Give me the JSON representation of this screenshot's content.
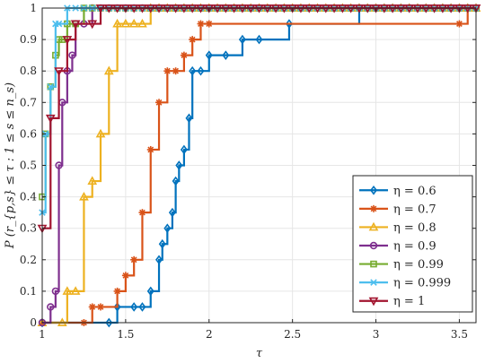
{
  "chart_data": {
    "type": "line",
    "step": true,
    "xlabel": "τ",
    "ylabel": "P (r_{p,s} ≤ τ : 1 ≤ s ≤ n_s)",
    "xlim": [
      1,
      3.6
    ],
    "ylim": [
      0,
      1
    ],
    "xticks": [
      1,
      1.5,
      2,
      2.5,
      3,
      3.5
    ],
    "xtick_labels": [
      "1",
      "1.5",
      "2",
      "2.5",
      "3",
      "3.5"
    ],
    "yticks": [
      0,
      0.1,
      0.2,
      0.3,
      0.4,
      0.5,
      0.6,
      0.7,
      0.8,
      0.9,
      1
    ],
    "ytick_labels": [
      "0",
      "0.1",
      "0.2",
      "0.3",
      "0.4",
      "0.5",
      "0.6",
      "0.7",
      "0.8",
      "0.9",
      "1"
    ],
    "grid": true,
    "legend_position": "bottom-right",
    "series": [
      {
        "name": "η = 0.6",
        "color": "#0072BD",
        "marker": "diamond",
        "x": [
          1,
          1.4,
          1.45,
          1.55,
          1.6,
          1.65,
          1.7,
          1.72,
          1.75,
          1.78,
          1.8,
          1.82,
          1.85,
          1.88,
          1.9,
          1.95,
          2.0,
          2.1,
          2.2,
          2.3,
          2.48,
          2.9
        ],
        "y": [
          0,
          0,
          0.05,
          0.05,
          0.05,
          0.1,
          0.2,
          0.25,
          0.3,
          0.35,
          0.45,
          0.5,
          0.55,
          0.65,
          0.8,
          0.8,
          0.85,
          0.85,
          0.9,
          0.9,
          0.95,
          1
        ]
      },
      {
        "name": "η = 0.7",
        "color": "#D95319",
        "marker": "asterisk",
        "x": [
          1,
          1.25,
          1.3,
          1.35,
          1.45,
          1.5,
          1.55,
          1.6,
          1.65,
          1.7,
          1.75,
          1.8,
          1.85,
          1.9,
          1.95,
          2.0,
          3.5,
          3.55
        ],
        "y": [
          0,
          0,
          0.05,
          0.05,
          0.1,
          0.15,
          0.2,
          0.35,
          0.55,
          0.7,
          0.8,
          0.8,
          0.85,
          0.9,
          0.95,
          0.95,
          0.95,
          1
        ]
      },
      {
        "name": "η = 0.8",
        "color": "#EDB120",
        "marker": "triangle-up",
        "x": [
          1,
          1.12,
          1.15,
          1.2,
          1.25,
          1.3,
          1.35,
          1.4,
          1.45,
          1.5,
          1.55,
          1.6,
          1.65
        ],
        "y": [
          0,
          0,
          0.1,
          0.1,
          0.4,
          0.45,
          0.6,
          0.8,
          0.95,
          0.95,
          0.95,
          0.95,
          1
        ]
      },
      {
        "name": "η = 0.9",
        "color": "#7E2F8E",
        "marker": "circle",
        "x": [
          1,
          1.05,
          1.08,
          1.1,
          1.12,
          1.15,
          1.18,
          1.2,
          1.25,
          1.3
        ],
        "y": [
          0,
          0.05,
          0.1,
          0.5,
          0.7,
          0.8,
          0.85,
          0.95,
          0.95,
          1
        ]
      },
      {
        "name": "η = 0.99",
        "color": "#77AC30",
        "marker": "square",
        "x": [
          1,
          1.02,
          1.05,
          1.08,
          1.1,
          1.12,
          1.15,
          1.2,
          1.25
        ],
        "y": [
          0.4,
          0.6,
          0.75,
          0.85,
          0.9,
          0.9,
          0.95,
          0.95,
          1
        ]
      },
      {
        "name": "η = 0.999",
        "color": "#4DBEEE",
        "marker": "x",
        "x": [
          1,
          1.02,
          1.05,
          1.08,
          1.1,
          1.15,
          1.2
        ],
        "y": [
          0.35,
          0.6,
          0.75,
          0.95,
          0.95,
          1,
          1
        ]
      },
      {
        "name": "η = 1",
        "color": "#A2142F",
        "marker": "triangle-down",
        "x": [
          1,
          1.05,
          1.1,
          1.15,
          1.2,
          1.3,
          1.35
        ],
        "y": [
          0.3,
          0.65,
          0.8,
          0.9,
          0.95,
          0.95,
          1
        ]
      }
    ]
  }
}
